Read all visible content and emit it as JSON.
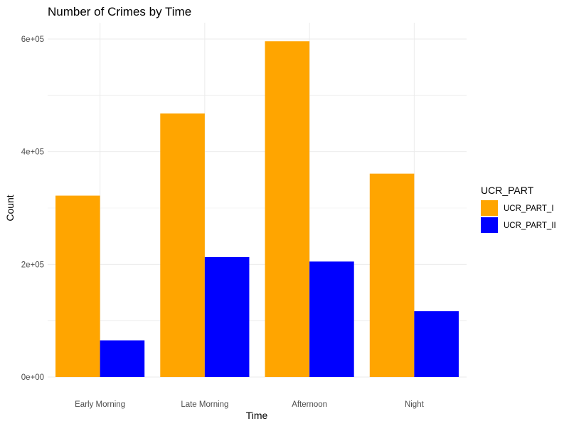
{
  "chart_data": {
    "type": "bar",
    "title": "Number of Crimes by Time",
    "xlabel": "Time",
    "ylabel": "Count",
    "categories": [
      "Early Morning",
      "Late Morning",
      "Afternoon",
      "Night"
    ],
    "series": [
      {
        "name": "UCR_PART_I",
        "color": "#FFA500",
        "values": [
          322000,
          468000,
          596000,
          361000
        ]
      },
      {
        "name": "UCR_PART_II",
        "color": "#0000FF",
        "values": [
          65000,
          213000,
          205000,
          117000
        ]
      }
    ],
    "ylim": [
      0,
      600000
    ],
    "yticks": [
      0,
      200000,
      400000,
      600000
    ],
    "ytick_labels": [
      "0e+00",
      "2e+05",
      "4e+05",
      "6e+05"
    ],
    "grid": true,
    "legend": {
      "title": "UCR_PART",
      "placement": "right",
      "entries": [
        "UCR_PART_I",
        "UCR_PART_II"
      ]
    }
  }
}
